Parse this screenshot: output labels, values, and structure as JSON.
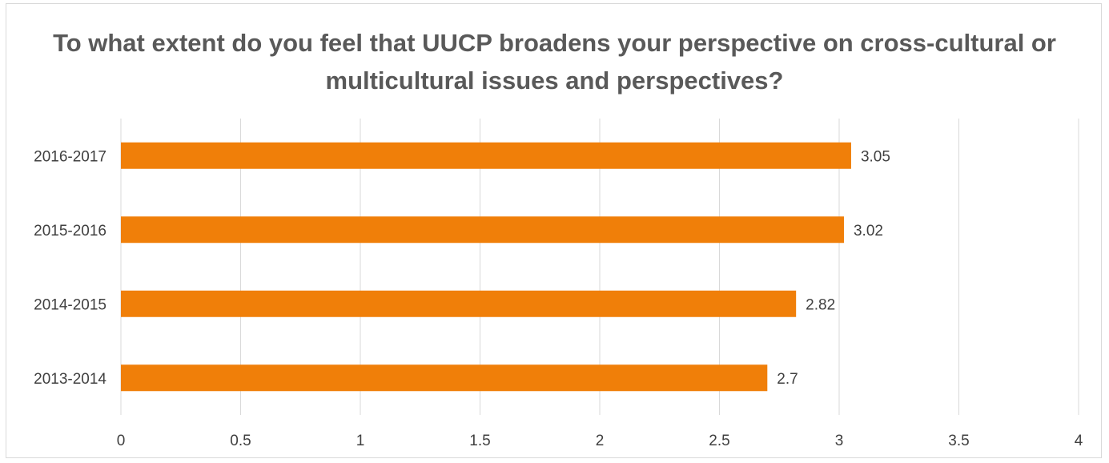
{
  "chart_data": {
    "type": "bar",
    "orientation": "horizontal",
    "title": "To what extent do you feel that UUCP broadens your perspective on cross-cultural or multicultural issues and perspectives?",
    "categories": [
      "2016-2017",
      "2015-2016",
      "2014-2015",
      "2013-2014"
    ],
    "values": [
      3.05,
      3.02,
      2.82,
      2.7
    ],
    "data_labels": [
      "3.05",
      "3.02",
      "2.82",
      "2.7"
    ],
    "xlim": [
      0,
      4
    ],
    "x_ticks": [
      0,
      0.5,
      1,
      1.5,
      2,
      2.5,
      3,
      3.5,
      4
    ],
    "x_tick_labels": [
      "0",
      "0.5",
      "1",
      "1.5",
      "2",
      "2.5",
      "3",
      "3.5",
      "4"
    ],
    "xlabel": "",
    "ylabel": "",
    "grid": "vertical",
    "legend": "none",
    "bar_color": "#F07F09",
    "grid_color": "#d9d9d9"
  }
}
